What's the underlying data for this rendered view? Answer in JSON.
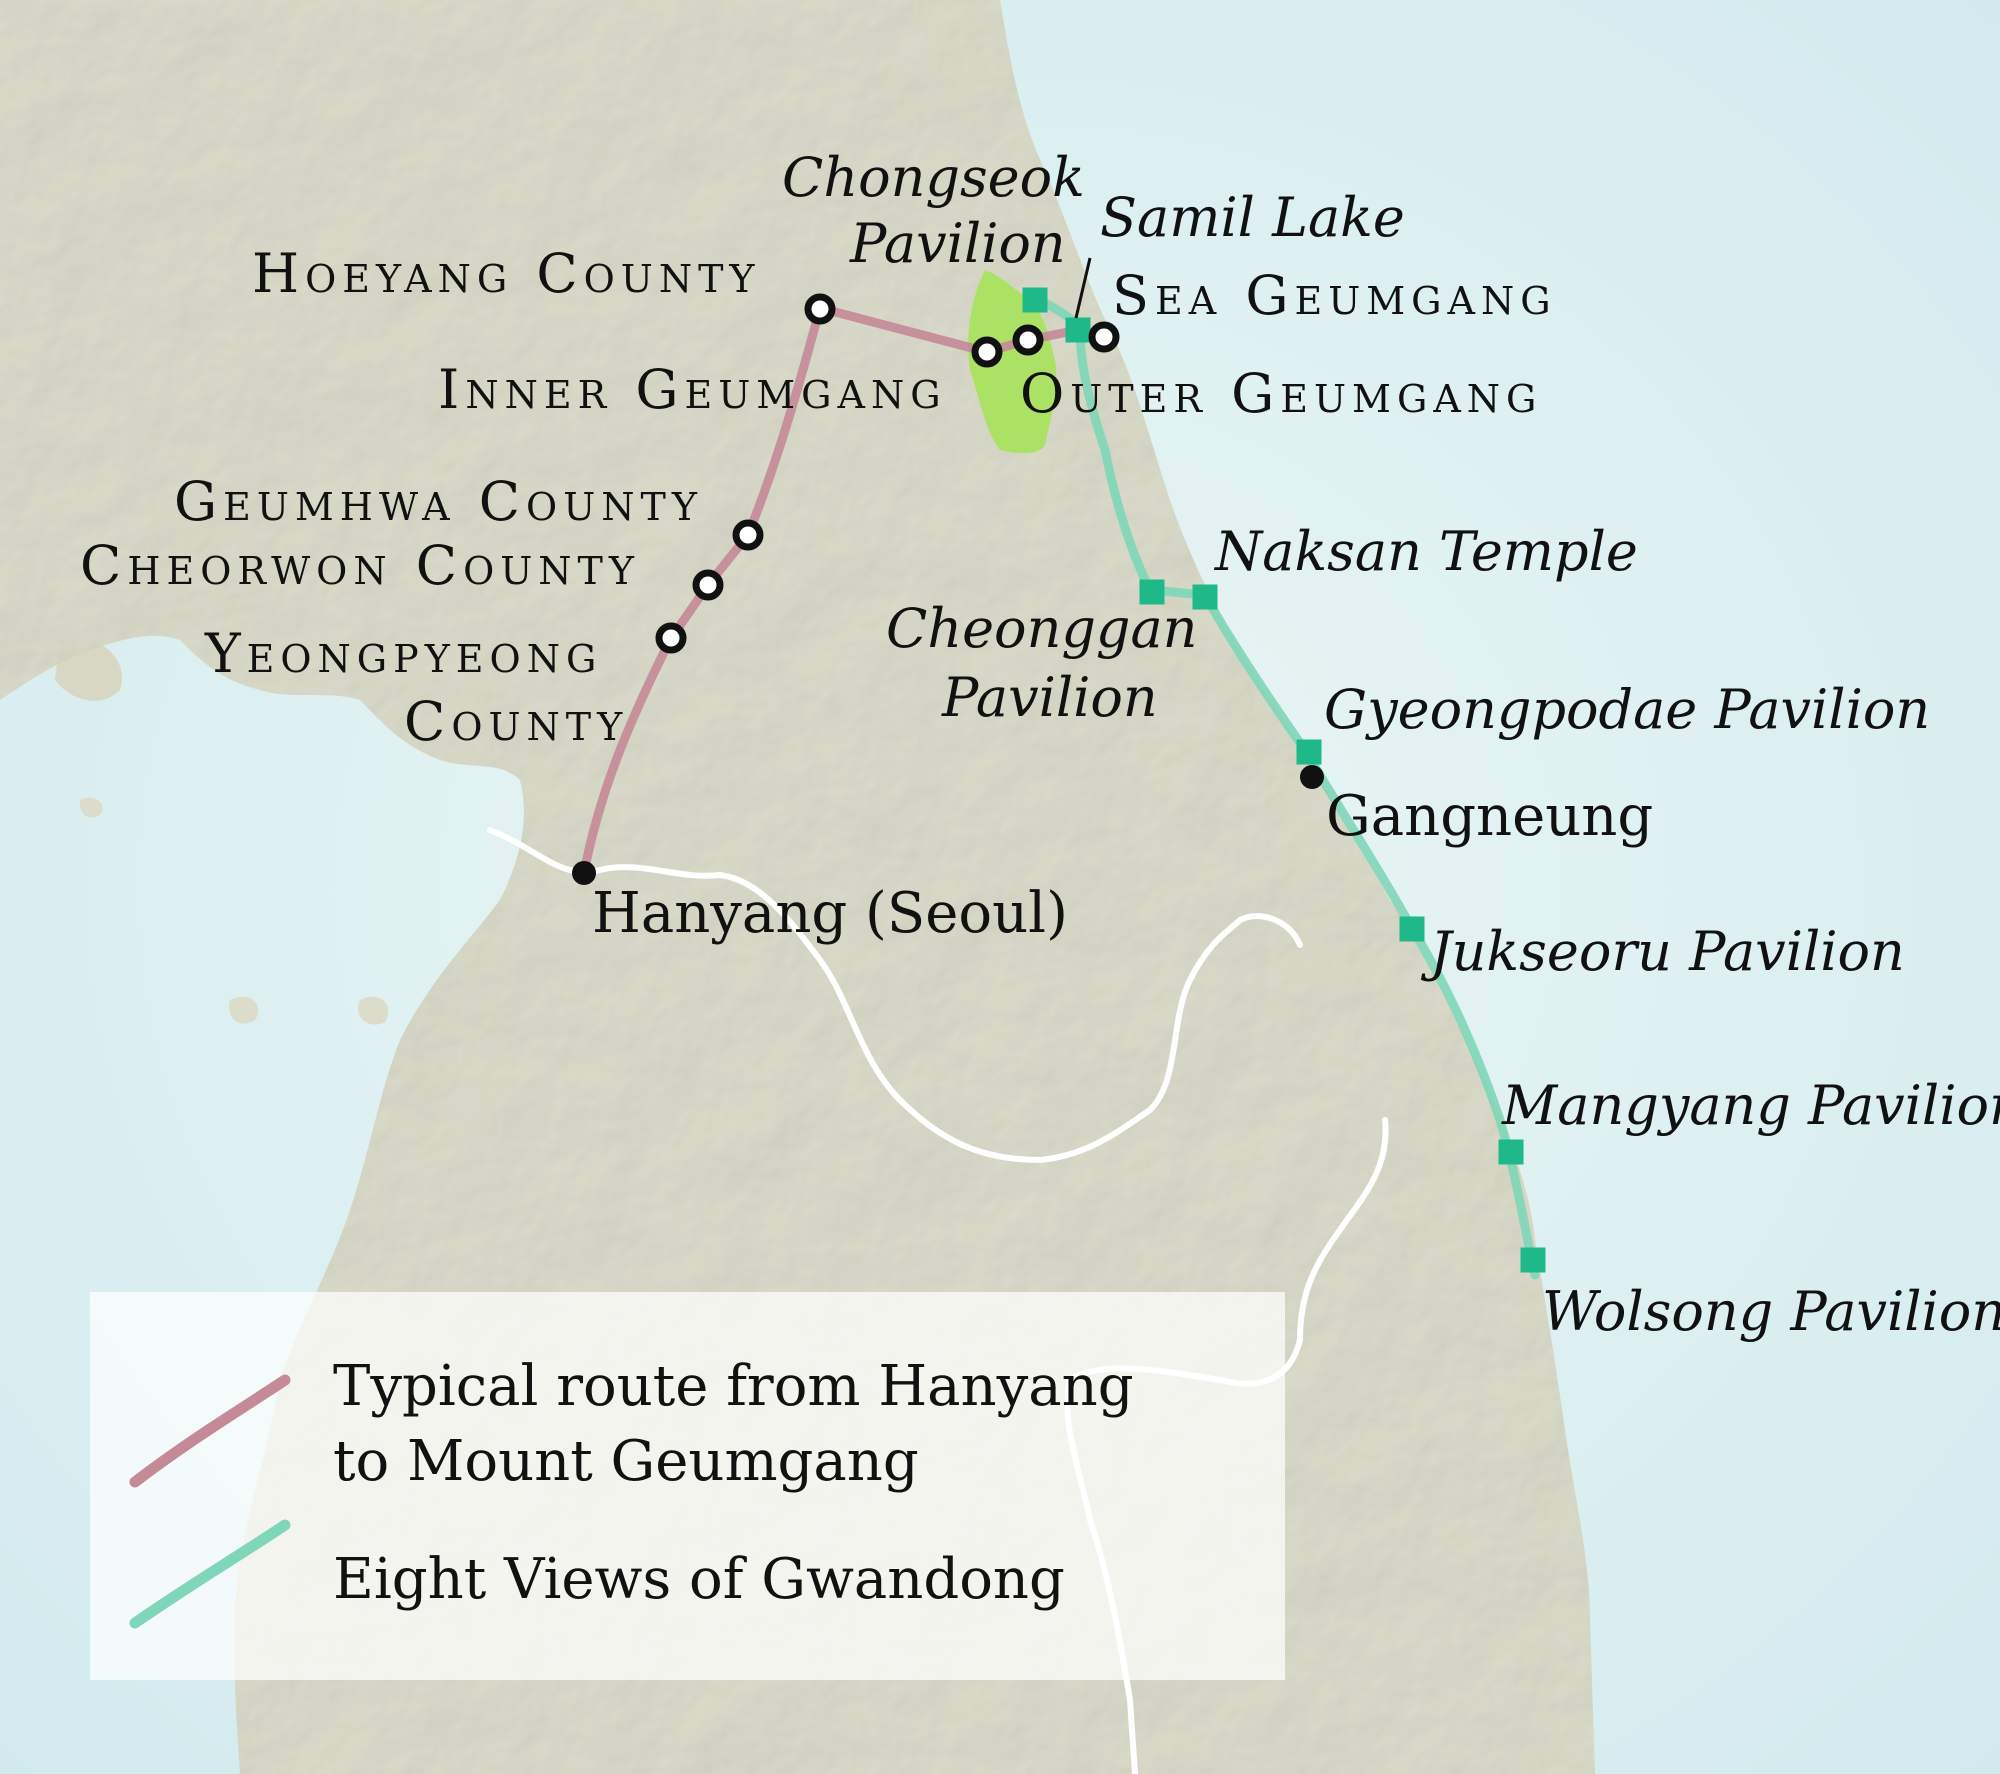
{
  "counties": {
    "hoeyang": "Hoeyang County",
    "inner_geumgang": "Inner Geumgang",
    "geumhwa": "Geumhwa County",
    "cheorwon": "Cheorwon County",
    "yeongpyeong_1": "Yeongpyeong",
    "yeongpyeong_2": "County",
    "sea_geumgang": "Sea Geumgang",
    "outer_geumgang": "Outer Geumgang"
  },
  "pavilions": {
    "chongseok_1": "Chongseok",
    "chongseok_2": "Pavilion",
    "samil": "Samil Lake",
    "naksan": "Naksan Temple",
    "cheonggan_1": "Cheonggan",
    "cheonggan_2": "Pavilion",
    "gyeongpodae": "Gyeongpodae Pavilion",
    "jukseoru": "Jukseoru Pavilion",
    "mangyang": "Mangyang Pavilion",
    "wolsong": "Wolsong Pavilion"
  },
  "cities": {
    "hanyang": "Hanyang (Seoul)",
    "gangneung": "Gangneung"
  },
  "legend": {
    "route_line1": "Typical route from Hanyang",
    "route_line2": "to Mount Geumgang",
    "views": "Eight Views of Gwandong"
  },
  "colors": {
    "route": "#c48a98",
    "views": "#7fd6b8",
    "views_marker": "#1fb889",
    "geumgang_area": "#a6e35a",
    "land": "#dcdccc",
    "sea": "#d4ecef"
  }
}
